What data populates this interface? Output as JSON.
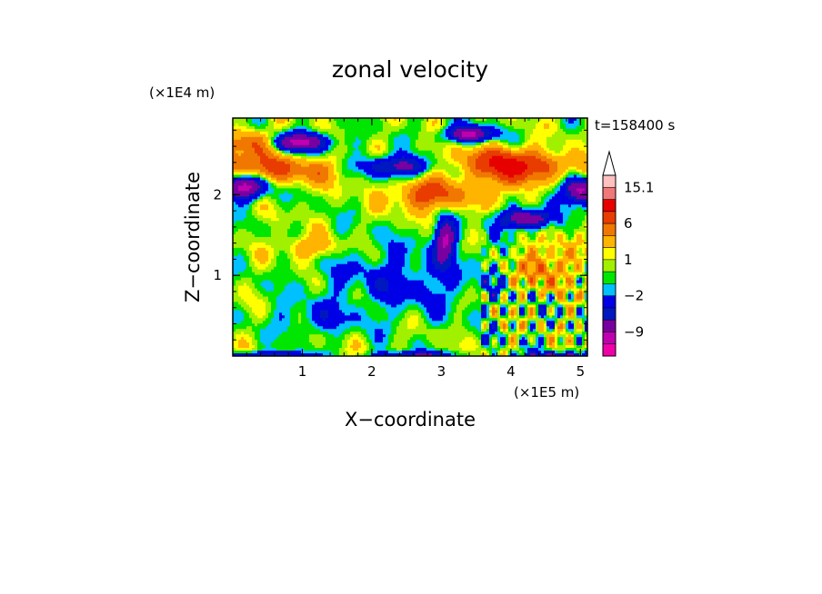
{
  "chart_data": {
    "type": "heatmap",
    "title": "zonal velocity",
    "xlabel": "X−coordinate",
    "ylabel": "Z−coordinate",
    "x_scale_note": "(×1E5 m)",
    "y_scale_note": "(×1E4 m)",
    "time_label": "t=158400 s",
    "xlim": [
      0,
      5.1
    ],
    "ylim": [
      0,
      2.95
    ],
    "x_ticks": [
      {
        "value": 1,
        "label": "1"
      },
      {
        "value": 2,
        "label": "2"
      },
      {
        "value": 3,
        "label": "3"
      },
      {
        "value": 4,
        "label": "4"
      },
      {
        "value": 5,
        "label": "5"
      }
    ],
    "y_ticks": [
      {
        "value": 1,
        "label": "1"
      },
      {
        "value": 2,
        "label": "2"
      }
    ],
    "colorbar": {
      "extend_max": true,
      "levels": [
        -15,
        -12,
        -9,
        -6,
        -4,
        -2,
        -1,
        0,
        1,
        2,
        4,
        6,
        9,
        12,
        15.1
      ],
      "colors": [
        "#f000a8",
        "#c000b0",
        "#7800a0",
        "#0018c0",
        "#0000e6",
        "#00c0ff",
        "#00e600",
        "#a0f000",
        "#ffff00",
        "#ffb400",
        "#f07800",
        "#e83c00",
        "#e60000",
        "#f07878",
        "#ffc0c0"
      ],
      "tick_labels": [
        {
          "value": 15.1,
          "label": "15.1"
        },
        {
          "value": 6,
          "label": "6"
        },
        {
          "value": 1,
          "label": "1"
        },
        {
          "value": -2,
          "label": "−2"
        },
        {
          "value": -9,
          "label": "−9"
        }
      ]
    }
  }
}
